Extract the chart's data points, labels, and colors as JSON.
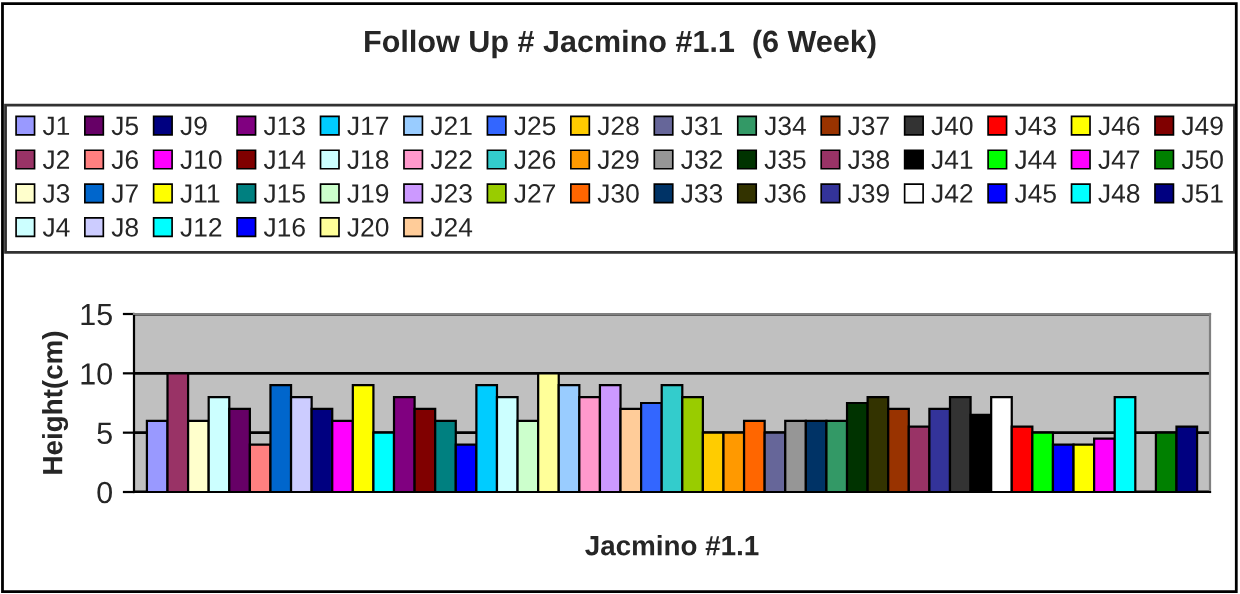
{
  "chart_data": {
    "type": "bar",
    "title": "Follow Up # Jacmino #1.1  (6 Week)",
    "xlabel": "Jacmino #1.1",
    "ylabel": "Height(cm)",
    "categories": [
      null
    ],
    "ylim": [
      0,
      15
    ],
    "yticks": [
      0,
      5,
      10,
      15
    ],
    "grid": "y",
    "legend": "top",
    "series": [
      {
        "name": "J1",
        "color": "#9999ff",
        "values": [
          6
        ]
      },
      {
        "name": "J2",
        "color": "#993366",
        "values": [
          10
        ]
      },
      {
        "name": "J3",
        "color": "#ffffcc",
        "values": [
          6
        ]
      },
      {
        "name": "J4",
        "color": "#ccffff",
        "values": [
          8
        ]
      },
      {
        "name": "J5",
        "color": "#660066",
        "values": [
          7
        ]
      },
      {
        "name": "J6",
        "color": "#ff8080",
        "values": [
          4
        ]
      },
      {
        "name": "J7",
        "color": "#0066cc",
        "values": [
          9
        ]
      },
      {
        "name": "J8",
        "color": "#ccccff",
        "values": [
          8
        ]
      },
      {
        "name": "J9",
        "color": "#000080",
        "values": [
          7
        ]
      },
      {
        "name": "J10",
        "color": "#ff00ff",
        "values": [
          6
        ]
      },
      {
        "name": "J11",
        "color": "#ffff00",
        "values": [
          9
        ]
      },
      {
        "name": "J12",
        "color": "#00ffff",
        "values": [
          5
        ]
      },
      {
        "name": "J13",
        "color": "#800080",
        "values": [
          8
        ]
      },
      {
        "name": "J14",
        "color": "#800000",
        "values": [
          7
        ]
      },
      {
        "name": "J15",
        "color": "#008080",
        "values": [
          6
        ]
      },
      {
        "name": "J16",
        "color": "#0000ff",
        "values": [
          4
        ]
      },
      {
        "name": "J17",
        "color": "#00ccff",
        "values": [
          9
        ]
      },
      {
        "name": "J18",
        "color": "#ccffff",
        "values": [
          8
        ]
      },
      {
        "name": "J19",
        "color": "#ccffcc",
        "values": [
          6
        ]
      },
      {
        "name": "J20",
        "color": "#ffff99",
        "values": [
          10
        ]
      },
      {
        "name": "J21",
        "color": "#99ccff",
        "values": [
          9
        ]
      },
      {
        "name": "J22",
        "color": "#ff99cc",
        "values": [
          8
        ]
      },
      {
        "name": "J23",
        "color": "#cc99ff",
        "values": [
          9
        ]
      },
      {
        "name": "J24",
        "color": "#ffcc99",
        "values": [
          7
        ]
      },
      {
        "name": "J25",
        "color": "#3366ff",
        "values": [
          7.5
        ]
      },
      {
        "name": "J26",
        "color": "#33cccc",
        "values": [
          9
        ]
      },
      {
        "name": "J27",
        "color": "#99cc00",
        "values": [
          8
        ]
      },
      {
        "name": "J28",
        "color": "#ffcc00",
        "values": [
          5
        ]
      },
      {
        "name": "J29",
        "color": "#ff9900",
        "values": [
          5
        ]
      },
      {
        "name": "J30",
        "color": "#ff6600",
        "values": [
          6
        ]
      },
      {
        "name": "J31",
        "color": "#666699",
        "values": [
          5
        ]
      },
      {
        "name": "J32",
        "color": "#969696",
        "values": [
          6
        ]
      },
      {
        "name": "J33",
        "color": "#003366",
        "values": [
          6
        ]
      },
      {
        "name": "J34",
        "color": "#339966",
        "values": [
          6
        ]
      },
      {
        "name": "J35",
        "color": "#003300",
        "values": [
          7.5
        ]
      },
      {
        "name": "J36",
        "color": "#333300",
        "values": [
          8
        ]
      },
      {
        "name": "J37",
        "color": "#993300",
        "values": [
          7
        ]
      },
      {
        "name": "J38",
        "color": "#993366",
        "values": [
          5.5
        ]
      },
      {
        "name": "J39",
        "color": "#333399",
        "values": [
          7
        ]
      },
      {
        "name": "J40",
        "color": "#333333",
        "values": [
          8
        ]
      },
      {
        "name": "J41",
        "color": "#000000",
        "values": [
          6.5
        ]
      },
      {
        "name": "J42",
        "color": "#ffffff",
        "values": [
          8
        ]
      },
      {
        "name": "J43",
        "color": "#ff0000",
        "values": [
          5.5
        ]
      },
      {
        "name": "J44",
        "color": "#00ff00",
        "values": [
          5
        ]
      },
      {
        "name": "J45",
        "color": "#0000ff",
        "values": [
          4
        ]
      },
      {
        "name": "J46",
        "color": "#ffff00",
        "values": [
          4
        ]
      },
      {
        "name": "J47",
        "color": "#ff00ff",
        "values": [
          4.5
        ]
      },
      {
        "name": "J48",
        "color": "#00ffff",
        "values": [
          8
        ]
      },
      {
        "name": "J49",
        "color": "#800000",
        "values": [
          null
        ]
      },
      {
        "name": "J50",
        "color": "#008000",
        "values": [
          5
        ]
      },
      {
        "name": "J51",
        "color": "#000080",
        "values": [
          5.5
        ]
      }
    ]
  }
}
